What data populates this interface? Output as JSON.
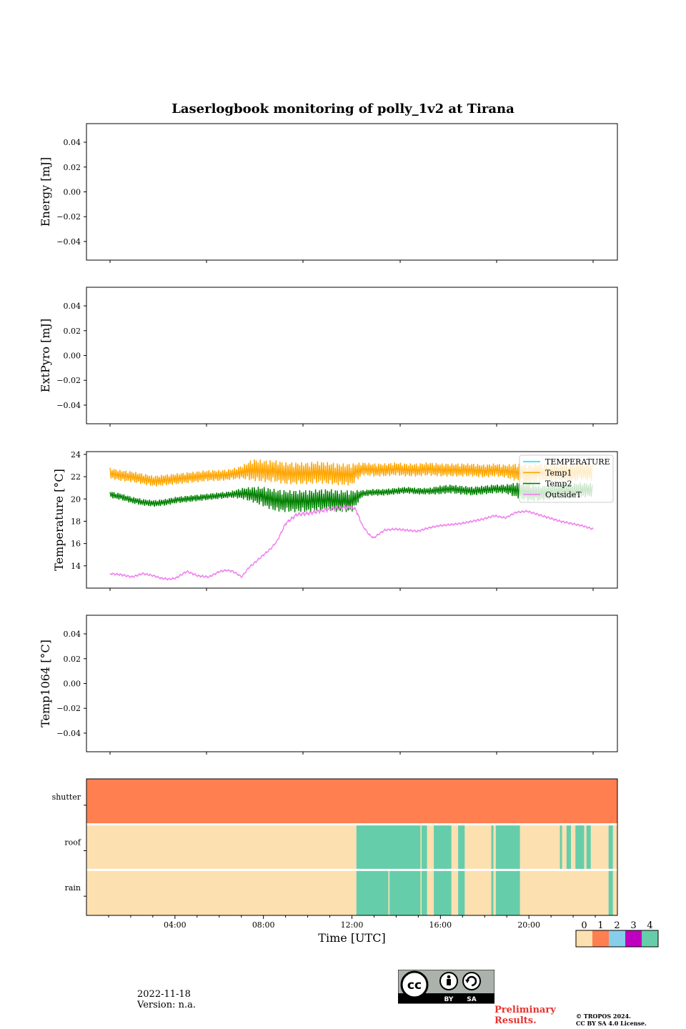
{
  "figure": {
    "title": "Laserlogbook monitoring of polly_1v2 at Tirana"
  },
  "chart_data": [
    {
      "type": "line",
      "ylabel": "Energy [mJ]",
      "ylim": [
        -0.055,
        0.055
      ],
      "yticks": [
        -0.04,
        -0.02,
        0.0,
        0.02,
        0.04
      ],
      "ytick_labels": [
        "−0.04",
        "−0.02",
        "0.00",
        "0.02",
        "0.04"
      ],
      "series": []
    },
    {
      "type": "line",
      "ylabel": "ExtPyro [mJ]",
      "ylim": [
        -0.055,
        0.055
      ],
      "yticks": [
        -0.04,
        -0.02,
        0.0,
        0.02,
        0.04
      ],
      "ytick_labels": [
        "−0.04",
        "−0.02",
        "0.00",
        "0.02",
        "0.04"
      ],
      "series": []
    },
    {
      "type": "line",
      "ylabel": "Temperature [°C]",
      "ylim": [
        12,
        24.25
      ],
      "yticks": [
        14,
        16,
        18,
        20,
        22,
        24
      ],
      "ytick_labels": [
        "14",
        "16",
        "18",
        "20",
        "22",
        "24"
      ],
      "legend_position": "top-right",
      "series": [
        {
          "name": "TEMPERATURE",
          "color": "#00e5ee",
          "x": [],
          "y": []
        },
        {
          "name": "Temp1",
          "color": "#ffa500",
          "x": [
            1.0,
            1.5,
            2.0,
            2.5,
            3.0,
            3.5,
            4.0,
            4.5,
            5.0,
            5.5,
            6.0,
            6.5,
            7.0,
            7.5,
            8.0,
            8.5,
            9.0,
            9.5,
            10.0,
            10.5,
            11.0,
            11.5,
            12.0,
            12.5,
            13.0,
            13.5,
            14.0,
            14.5,
            15.0,
            15.5,
            16.0,
            16.5,
            17.0,
            17.5,
            18.0,
            18.5,
            19.0,
            19.5,
            20.0,
            20.5,
            21.0,
            21.5,
            22.0,
            22.5,
            23.0
          ],
          "y": [
            22.3,
            22.1,
            22.0,
            21.8,
            21.6,
            21.7,
            21.8,
            21.9,
            22.0,
            22.1,
            22.1,
            22.2,
            22.4,
            22.6,
            22.5,
            22.5,
            22.3,
            22.3,
            22.3,
            22.4,
            22.3,
            22.2,
            22.2,
            22.7,
            22.6,
            22.6,
            22.7,
            22.6,
            22.6,
            22.7,
            22.6,
            22.6,
            22.6,
            22.6,
            22.5,
            22.6,
            22.5,
            22.4,
            22.2,
            22.4,
            22.3,
            22.4,
            22.3,
            22.5,
            22.3
          ],
          "amp": [
            0.5,
            0.5,
            0.5,
            0.5,
            0.5,
            0.5,
            0.5,
            0.5,
            0.5,
            0.5,
            0.5,
            0.5,
            0.6,
            1.0,
            1.0,
            1.0,
            1.0,
            1.0,
            1.0,
            1.0,
            1.0,
            1.0,
            1.0,
            0.6,
            0.6,
            0.6,
            0.6,
            0.6,
            0.6,
            0.6,
            0.6,
            0.6,
            0.6,
            0.6,
            0.6,
            0.6,
            0.6,
            0.8,
            0.9,
            0.8,
            0.8,
            0.8,
            0.8,
            0.8,
            0.8
          ]
        },
        {
          "name": "Temp2",
          "color": "#008000",
          "x": [
            1.0,
            1.5,
            2.0,
            2.5,
            3.0,
            3.5,
            4.0,
            4.5,
            5.0,
            5.5,
            6.0,
            6.5,
            7.0,
            7.5,
            8.0,
            8.5,
            9.0,
            9.5,
            10.0,
            10.5,
            11.0,
            11.5,
            12.0,
            12.5,
            13.0,
            13.5,
            14.0,
            14.5,
            15.0,
            15.5,
            16.0,
            16.5,
            17.0,
            17.5,
            18.0,
            18.5,
            19.0,
            19.5,
            20.0,
            20.5,
            21.0,
            21.5,
            22.0,
            22.5,
            23.0
          ],
          "y": [
            20.4,
            20.2,
            19.9,
            19.7,
            19.6,
            19.7,
            19.9,
            20.0,
            20.1,
            20.2,
            20.3,
            20.4,
            20.5,
            20.4,
            20.2,
            19.9,
            19.8,
            19.8,
            19.8,
            19.9,
            19.9,
            19.8,
            19.8,
            20.5,
            20.6,
            20.6,
            20.7,
            20.8,
            20.7,
            20.7,
            20.8,
            20.9,
            20.8,
            20.7,
            20.8,
            20.9,
            20.9,
            20.8,
            20.6,
            20.5,
            20.6,
            20.7,
            20.7,
            20.8,
            20.8
          ],
          "amp": [
            0.3,
            0.3,
            0.3,
            0.3,
            0.3,
            0.3,
            0.3,
            0.3,
            0.3,
            0.3,
            0.3,
            0.3,
            0.5,
            0.7,
            0.9,
            1.0,
            1.0,
            1.0,
            1.0,
            1.0,
            1.0,
            1.0,
            1.0,
            0.3,
            0.3,
            0.3,
            0.3,
            0.3,
            0.3,
            0.3,
            0.4,
            0.4,
            0.4,
            0.4,
            0.4,
            0.4,
            0.4,
            0.7,
            0.8,
            0.7,
            0.7,
            0.7,
            0.7,
            0.7,
            0.6
          ]
        },
        {
          "name": "OutsideT",
          "color": "#ee82ee",
          "x": [
            1.0,
            1.5,
            2.0,
            2.5,
            3.0,
            3.3,
            3.7,
            4.0,
            4.5,
            5.0,
            5.5,
            6.0,
            6.3,
            6.6,
            7.0,
            7.3,
            7.6,
            8.0,
            8.3,
            8.6,
            9.0,
            9.5,
            10.0,
            10.5,
            11.0,
            11.5,
            12.0,
            12.2,
            12.5,
            12.8,
            13.0,
            13.5,
            14.0,
            14.5,
            15.0,
            15.5,
            16.0,
            16.5,
            17.0,
            17.5,
            18.0,
            18.5,
            19.0,
            19.5,
            20.0,
            20.5,
            21.0,
            21.5,
            22.0,
            22.5,
            23.0
          ],
          "y": [
            13.3,
            13.2,
            13.0,
            13.3,
            13.1,
            12.9,
            12.8,
            12.9,
            13.5,
            13.1,
            13.0,
            13.5,
            13.6,
            13.5,
            13.0,
            13.8,
            14.3,
            15.0,
            15.5,
            16.2,
            17.8,
            18.6,
            18.7,
            18.9,
            19.1,
            19.2,
            19.3,
            19.0,
            17.6,
            16.8,
            16.5,
            17.2,
            17.3,
            17.2,
            17.1,
            17.4,
            17.6,
            17.7,
            17.8,
            18.0,
            18.2,
            18.5,
            18.3,
            18.8,
            18.9,
            18.6,
            18.3,
            18.0,
            17.8,
            17.6,
            17.3
          ],
          "amp": [
            0.1,
            0.1,
            0.1,
            0.1,
            0.1,
            0.1,
            0.1,
            0.1,
            0.1,
            0.1,
            0.1,
            0.1,
            0.1,
            0.1,
            0.1,
            0.1,
            0.1,
            0.1,
            0.1,
            0.1,
            0.15,
            0.2,
            0.2,
            0.2,
            0.2,
            0.2,
            0.2,
            0.2,
            0.1,
            0.1,
            0.1,
            0.1,
            0.1,
            0.1,
            0.1,
            0.1,
            0.1,
            0.1,
            0.1,
            0.1,
            0.1,
            0.1,
            0.1,
            0.1,
            0.1,
            0.1,
            0.1,
            0.1,
            0.1,
            0.1,
            0.1
          ]
        }
      ]
    },
    {
      "type": "line",
      "ylabel": "Temp1064 [°C]",
      "ylim": [
        -0.055,
        0.055
      ],
      "yticks": [
        -0.04,
        -0.02,
        0.0,
        0.02,
        0.04
      ],
      "ytick_labels": [
        "−0.04",
        "−0.02",
        "0.00",
        "0.02",
        "0.04"
      ],
      "series": []
    },
    {
      "type": "heatmap",
      "xlabel": "Time [UTC]",
      "xlim_hours": [
        0,
        24
      ],
      "xticks_hours": [
        4,
        8,
        12,
        16,
        20
      ],
      "xtick_labels": [
        "04:00",
        "08:00",
        "12:00",
        "16:00",
        "20:00"
      ],
      "rows": [
        "shutter",
        "roof",
        "rain"
      ],
      "colorbar": {
        "labels": [
          "0",
          "1",
          "2",
          "3",
          "4"
        ],
        "colors": [
          "#fde0b0",
          "#ff7f50",
          "#87ceeb",
          "#c000c0",
          "#66cdaa"
        ]
      },
      "segments": {
        "shutter": [
          [
            0,
            24,
            1
          ]
        ],
        "roof": [
          [
            0,
            12.2,
            0
          ],
          [
            12.2,
            15.1,
            4
          ],
          [
            15.1,
            15.15,
            0
          ],
          [
            15.15,
            15.4,
            4
          ],
          [
            15.4,
            15.7,
            0
          ],
          [
            15.7,
            16.5,
            4
          ],
          [
            16.5,
            16.8,
            0
          ],
          [
            16.8,
            17.1,
            4
          ],
          [
            17.1,
            18.3,
            0
          ],
          [
            18.3,
            18.4,
            4
          ],
          [
            18.4,
            18.5,
            0
          ],
          [
            18.5,
            19.6,
            4
          ],
          [
            19.6,
            21.4,
            0
          ],
          [
            21.4,
            21.5,
            4
          ],
          [
            21.5,
            21.7,
            0
          ],
          [
            21.7,
            21.9,
            4
          ],
          [
            21.9,
            22.1,
            0
          ],
          [
            22.1,
            22.5,
            4
          ],
          [
            22.5,
            22.6,
            0
          ],
          [
            22.6,
            22.8,
            4
          ],
          [
            22.8,
            23.6,
            0
          ],
          [
            23.6,
            23.8,
            4
          ],
          [
            23.8,
            24,
            0
          ]
        ],
        "rain": [
          [
            0,
            12.2,
            0
          ],
          [
            12.2,
            13.65,
            4
          ],
          [
            13.65,
            13.7,
            0
          ],
          [
            13.7,
            15.1,
            4
          ],
          [
            15.1,
            15.15,
            0
          ],
          [
            15.15,
            15.4,
            4
          ],
          [
            15.4,
            15.7,
            0
          ],
          [
            15.7,
            16.5,
            4
          ],
          [
            16.5,
            16.8,
            0
          ],
          [
            16.8,
            17.1,
            4
          ],
          [
            17.1,
            18.3,
            0
          ],
          [
            18.3,
            18.4,
            4
          ],
          [
            18.4,
            18.5,
            0
          ],
          [
            18.5,
            19.6,
            4
          ],
          [
            19.6,
            23.6,
            0
          ],
          [
            23.6,
            23.8,
            4
          ],
          [
            23.8,
            24,
            0
          ]
        ]
      }
    }
  ],
  "footer": {
    "date": "2022-11-18",
    "version": "Version: n.a.",
    "preliminary": "Preliminary Results.",
    "copyright_line1": "© TROPOS 2024.",
    "copyright_line2": "CC BY SA 4.0 License.",
    "cc_badge": {
      "by": "BY",
      "sa": "SA"
    }
  }
}
